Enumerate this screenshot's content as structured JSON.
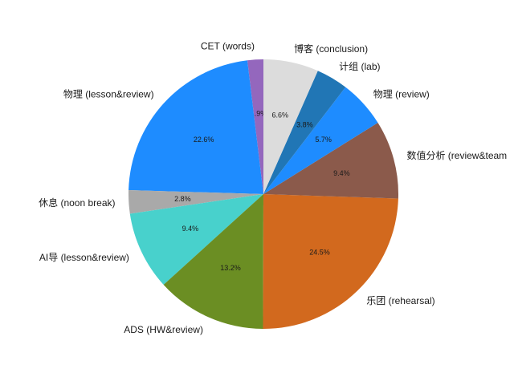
{
  "chart_data": {
    "type": "pie",
    "title": "",
    "start_angle_deg": 90,
    "direction": "counterclockwise",
    "slices": [
      {
        "label": "CET (words)",
        "value": 1.9,
        "pct_text": "1.9%",
        "color": "#9467bd"
      },
      {
        "label": "物理 (lesson&review)",
        "value": 22.6,
        "pct_text": "22.6%",
        "color": "#1e8cff"
      },
      {
        "label": "休息 (noon break)",
        "value": 2.8,
        "pct_text": "2.8%",
        "color": "#a9a9a9"
      },
      {
        "label": "AI导 (lesson&review)",
        "value": 9.4,
        "pct_text": "9.4%",
        "color": "#48d1cc"
      },
      {
        "label": "ADS (HW&review)",
        "value": 13.2,
        "pct_text": "13.2%",
        "color": "#6b8e23"
      },
      {
        "label": "乐团 (rehearsal)",
        "value": 24.5,
        "pct_text": "24.5%",
        "color": "#d2691e"
      },
      {
        "label": "数值分析 (review&team",
        "value": 9.4,
        "pct_text": "9.4%",
        "color": "#8b5a4b"
      },
      {
        "label": "物理 (review)",
        "value": 5.7,
        "pct_text": "5.7%",
        "color": "#1e8cff"
      },
      {
        "label": "计组 (lab)",
        "value": 3.8,
        "pct_text": "3.8%",
        "color": "#2176b5"
      },
      {
        "label": "博客 (conclusion)",
        "value": 6.6,
        "pct_text": "6.6%",
        "color": "#dcdcdc"
      }
    ]
  }
}
